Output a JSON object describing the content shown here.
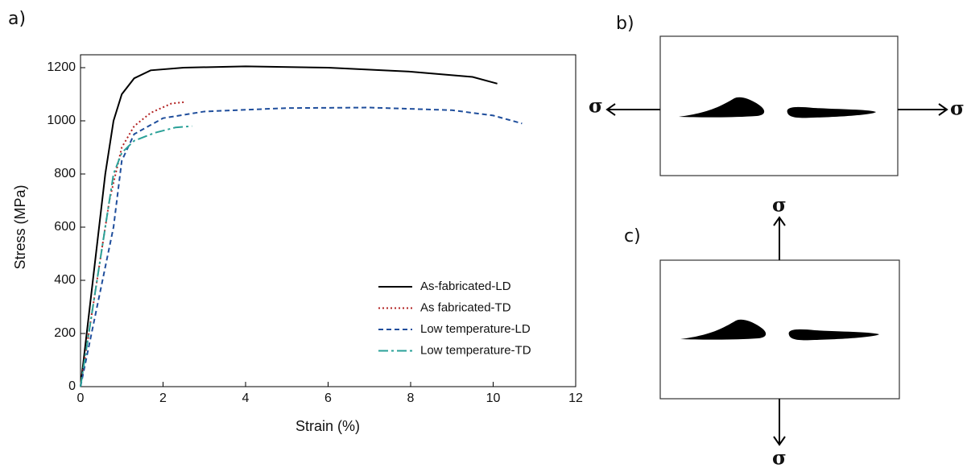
{
  "panel_labels": [
    "a)",
    "b)",
    "c)"
  ],
  "stress_symbol": "σ",
  "chart_data": {
    "type": "line",
    "xlabel": "Strain (%)",
    "ylabel": "Stress (MPa)",
    "xlim": [
      0,
      12
    ],
    "ylim": [
      0,
      1200
    ],
    "xticks": [
      0,
      2,
      4,
      6,
      8,
      10,
      12
    ],
    "yticks": [
      0,
      200,
      400,
      600,
      800,
      1000,
      1200
    ],
    "legend": "lower right",
    "series": [
      {
        "name": "As-fabricated-LD",
        "color": "#000000",
        "dash": "solid",
        "x": [
          0,
          0.3,
          0.6,
          0.8,
          1.0,
          1.3,
          1.7,
          2.5,
          4,
          6,
          8,
          9.5,
          10.1
        ],
        "values": [
          0,
          400,
          800,
          1000,
          1100,
          1160,
          1190,
          1200,
          1205,
          1200,
          1185,
          1165,
          1140
        ]
      },
      {
        "name": "As fabricated-TD",
        "color": "#b22222",
        "dash": "dotted",
        "x": [
          0,
          0.4,
          0.7,
          1.0,
          1.3,
          1.7,
          2.2,
          2.5
        ],
        "values": [
          0,
          400,
          700,
          900,
          980,
          1030,
          1065,
          1070
        ]
      },
      {
        "name": "Low temperature-LD",
        "color": "#1f4e9c",
        "dash": "dashed",
        "x": [
          0,
          0.4,
          0.8,
          1.0,
          1.3,
          2,
          3,
          5,
          7,
          9,
          10,
          10.7
        ],
        "values": [
          0,
          300,
          600,
          850,
          950,
          1010,
          1035,
          1048,
          1050,
          1040,
          1020,
          990
        ]
      },
      {
        "name": "Low temperature-TD",
        "color": "#2aa198",
        "dash": "dashdot",
        "x": [
          0,
          0.4,
          0.8,
          1.0,
          1.3,
          1.8,
          2.3,
          2.7
        ],
        "values": [
          0,
          400,
          800,
          880,
          925,
          955,
          975,
          980
        ]
      }
    ]
  }
}
